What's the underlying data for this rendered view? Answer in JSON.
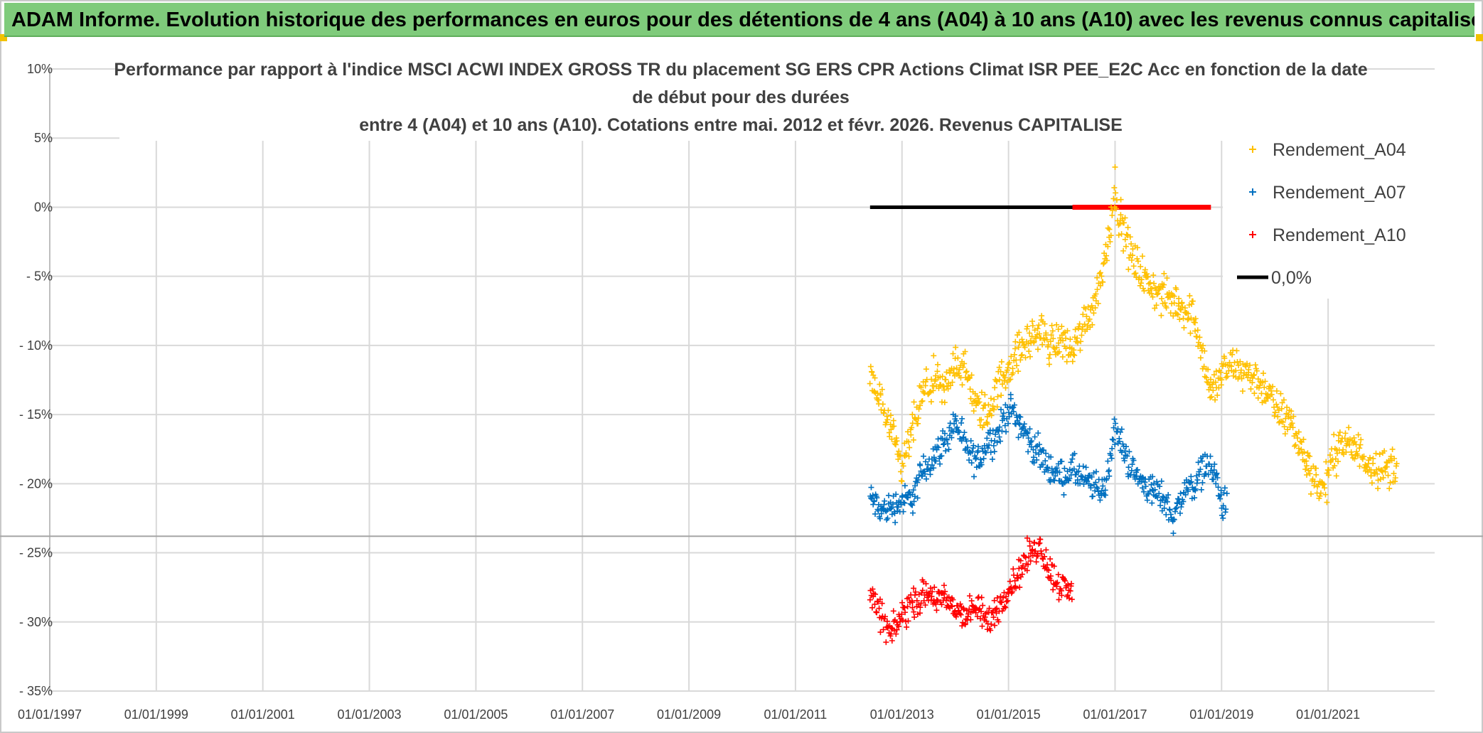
{
  "banner": {
    "text": "ADAM Informe. Evolution historique des performances en euros pour des détentions de 4 ans (A04) à 10 ans (A10) avec les revenus connus capitalisés"
  },
  "colors": {
    "banner_bg": "#7fcb7b",
    "a04": "#ffc000",
    "a07": "#0070c0",
    "a10": "#ff0000",
    "zero": "#000000",
    "grid": "#d9d9d9"
  },
  "chart_data": {
    "type": "scatter",
    "title_lines": [
      "Performance par rapport à l'indice MSCI ACWI INDEX GROSS TR  du placement SG ERS CPR Actions Climat ISR PEE_E2C Acc en fonction de la date",
      "de début pour des durées",
      "entre 4 (A04) et 10 ans (A10). Cotations entre mai. 2012 et févr. 2026. Revenus CAPITALISE"
    ],
    "x_ticks": [
      "01/01/1997",
      "01/01/1999",
      "01/01/2001",
      "01/01/2003",
      "01/01/2005",
      "01/01/2007",
      "01/01/2009",
      "01/01/2011",
      "01/01/2013",
      "01/01/2015",
      "01/01/2017",
      "01/01/2019",
      "01/01/2021"
    ],
    "x_range": [
      1997.0,
      2023.0
    ],
    "y_ticks": [
      "10%",
      "5%",
      "0%",
      "- 5%",
      "- 10%",
      "- 15%",
      "- 20%",
      "- 25%",
      "- 30%",
      "- 35%"
    ],
    "ylim": [
      -35,
      10
    ],
    "legend_position": "top-right",
    "series": [
      {
        "name": "Rendement_A04",
        "color": "#ffc000",
        "points": [
          [
            2012.4,
            -12.5
          ],
          [
            2012.6,
            -14.0
          ],
          [
            2012.8,
            -16.5
          ],
          [
            2013.0,
            -19.0
          ],
          [
            2013.2,
            -16.0
          ],
          [
            2013.4,
            -13.5
          ],
          [
            2013.6,
            -12.5
          ],
          [
            2013.8,
            -13.5
          ],
          [
            2014.0,
            -11.0
          ],
          [
            2014.2,
            -12.0
          ],
          [
            2014.4,
            -14.5
          ],
          [
            2014.6,
            -15.0
          ],
          [
            2014.8,
            -13.0
          ],
          [
            2015.0,
            -11.5
          ],
          [
            2015.2,
            -10.5
          ],
          [
            2015.4,
            -9.5
          ],
          [
            2015.6,
            -9.0
          ],
          [
            2015.8,
            -10.0
          ],
          [
            2016.0,
            -9.5
          ],
          [
            2016.2,
            -10.5
          ],
          [
            2016.4,
            -8.5
          ],
          [
            2016.6,
            -7.0
          ],
          [
            2016.8,
            -4.0
          ],
          [
            2017.0,
            1.5
          ],
          [
            2017.1,
            -1.0
          ],
          [
            2017.3,
            -3.5
          ],
          [
            2017.6,
            -5.5
          ],
          [
            2017.9,
            -6.5
          ],
          [
            2018.2,
            -7.0
          ],
          [
            2018.5,
            -8.0
          ],
          [
            2018.8,
            -13.5
          ],
          [
            2019.0,
            -12.0
          ],
          [
            2019.2,
            -11.5
          ],
          [
            2019.5,
            -12.0
          ],
          [
            2019.8,
            -13.0
          ],
          [
            2020.0,
            -14.5
          ],
          [
            2020.3,
            -15.5
          ],
          [
            2020.6,
            -18.5
          ],
          [
            2020.9,
            -20.5
          ],
          [
            2021.2,
            -17.0
          ],
          [
            2021.5,
            -17.5
          ],
          [
            2021.8,
            -18.5
          ],
          [
            2022.1,
            -19.0
          ],
          [
            2022.3,
            -18.5
          ]
        ],
        "jitter": 1.4
      },
      {
        "name": "Rendement_A07",
        "color": "#0070c0",
        "points": [
          [
            2012.4,
            -21.0
          ],
          [
            2012.6,
            -22.0
          ],
          [
            2012.9,
            -21.5
          ],
          [
            2013.2,
            -21.0
          ],
          [
            2013.4,
            -19.0
          ],
          [
            2013.6,
            -18.0
          ],
          [
            2013.8,
            -17.0
          ],
          [
            2014.0,
            -15.5
          ],
          [
            2014.2,
            -17.5
          ],
          [
            2014.4,
            -18.5
          ],
          [
            2014.6,
            -17.0
          ],
          [
            2014.8,
            -16.5
          ],
          [
            2015.0,
            -14.5
          ],
          [
            2015.2,
            -15.5
          ],
          [
            2015.4,
            -17.0
          ],
          [
            2015.6,
            -18.0
          ],
          [
            2015.8,
            -19.0
          ],
          [
            2016.0,
            -19.5
          ],
          [
            2016.2,
            -19.0
          ],
          [
            2016.5,
            -20.0
          ],
          [
            2016.8,
            -20.5
          ],
          [
            2017.0,
            -16.0
          ],
          [
            2017.2,
            -18.0
          ],
          [
            2017.4,
            -19.5
          ],
          [
            2017.7,
            -20.5
          ],
          [
            2017.9,
            -21.0
          ],
          [
            2018.1,
            -22.5
          ],
          [
            2018.3,
            -20.5
          ],
          [
            2018.5,
            -20.0
          ],
          [
            2018.7,
            -18.5
          ],
          [
            2018.9,
            -19.5
          ],
          [
            2019.0,
            -21.5
          ],
          [
            2019.1,
            -21.5
          ]
        ],
        "jitter": 1.1
      },
      {
        "name": "Rendement_A10",
        "color": "#ff0000",
        "points": [
          [
            2012.4,
            -28.0
          ],
          [
            2012.6,
            -29.5
          ],
          [
            2012.8,
            -31.0
          ],
          [
            2013.0,
            -29.5
          ],
          [
            2013.2,
            -28.5
          ],
          [
            2013.5,
            -28.0
          ],
          [
            2013.8,
            -28.5
          ],
          [
            2014.0,
            -29.0
          ],
          [
            2014.2,
            -29.5
          ],
          [
            2014.4,
            -29.0
          ],
          [
            2014.6,
            -30.0
          ],
          [
            2014.8,
            -29.0
          ],
          [
            2015.0,
            -27.5
          ],
          [
            2015.2,
            -26.5
          ],
          [
            2015.4,
            -25.0
          ],
          [
            2015.6,
            -24.5
          ],
          [
            2015.8,
            -26.5
          ],
          [
            2016.0,
            -27.5
          ],
          [
            2016.2,
            -28.0
          ]
        ],
        "jitter": 1.1
      },
      {
        "name": "0,0%",
        "color": "#000000",
        "type": "line",
        "x": [
          2012.4,
          2016.2
        ],
        "y": [
          0,
          0
        ]
      }
    ],
    "legend": [
      "Rendement_A04",
      "Rendement_A07",
      "Rendement_A10",
      "0,0%"
    ]
  }
}
